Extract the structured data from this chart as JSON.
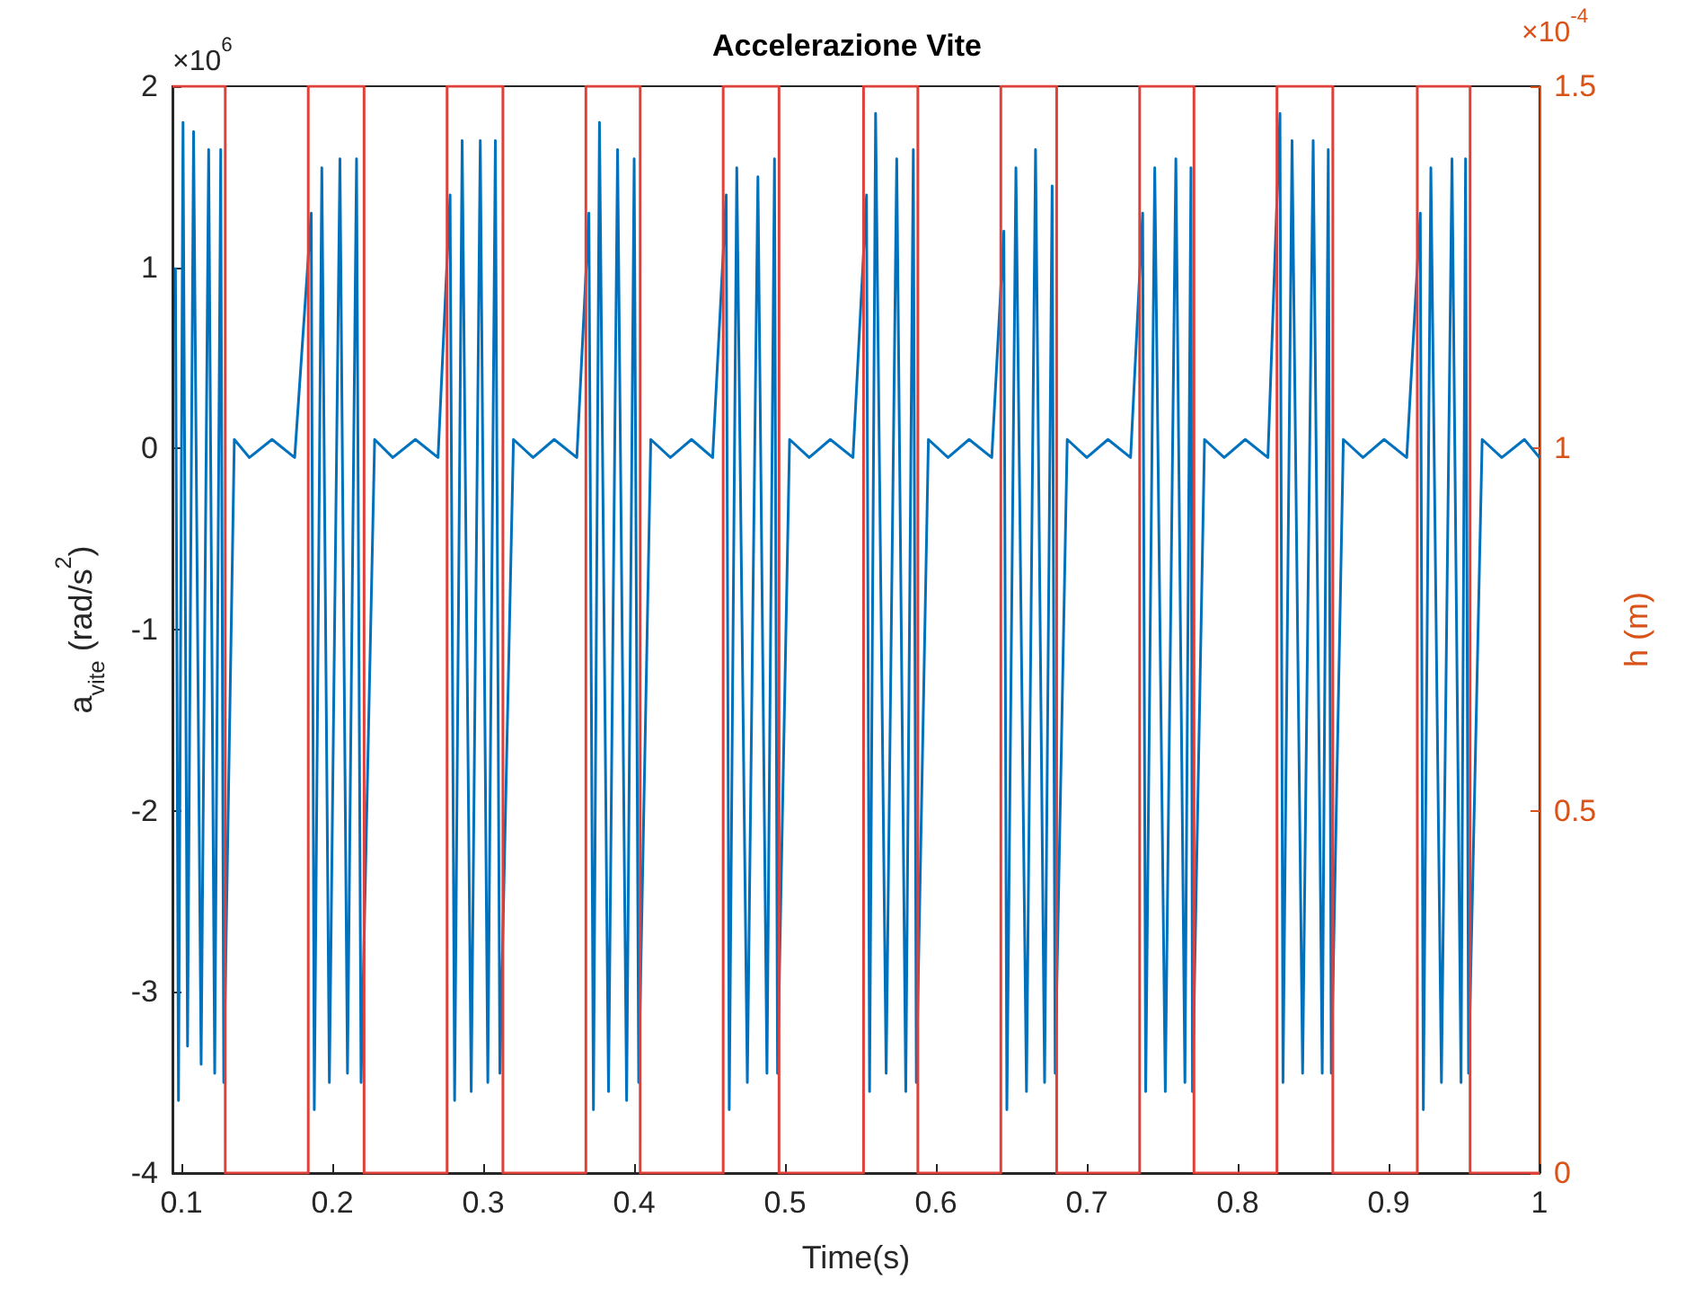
{
  "chart_data": {
    "type": "line",
    "title": "Accelerazione Vite",
    "xlabel": "Time(s)",
    "ylabel": "a$_{vite}$ (rad/s$^{2}$)",
    "y2label": "h (m)",
    "annotations": [
      "×10$^{6}$",
      "×10$^{-4}$"
    ],
    "xlim": [
      0.094,
      1
    ],
    "xticks": [
      0.1,
      0.2,
      0.3,
      0.4,
      0.5,
      0.6,
      0.7,
      0.8,
      0.9,
      1
    ],
    "ylim": [
      -4,
      2
    ],
    "yticks": [
      -4,
      -3,
      -2,
      -1,
      0,
      1,
      2
    ],
    "y2lim": [
      0,
      1.5
    ],
    "y2ticks": [
      0,
      0.5,
      1,
      1.5
    ],
    "grid": false,
    "legend": false,
    "marker": "none",
    "series": [
      {
        "color": "#0072bd",
        "x": [
          0.096,
          0.098,
          0.101,
          0.104,
          0.108,
          0.113,
          0.118,
          0.122,
          0.126,
          0.128,
          0.135,
          0.145,
          0.16,
          0.175,
          0.186,
          0.188,
          0.193,
          0.198,
          0.205,
          0.21,
          0.216,
          0.219,
          0.228,
          0.24,
          0.255,
          0.27,
          0.278,
          0.281,
          0.286,
          0.292,
          0.298,
          0.303,
          0.308,
          0.311,
          0.32,
          0.333,
          0.347,
          0.362,
          0.37,
          0.373,
          0.377,
          0.383,
          0.389,
          0.395,
          0.4,
          0.403,
          0.411,
          0.424,
          0.438,
          0.452,
          0.461,
          0.463,
          0.468,
          0.475,
          0.482,
          0.488,
          0.493,
          0.495,
          0.503,
          0.516,
          0.53,
          0.545,
          0.554,
          0.556,
          0.56,
          0.567,
          0.574,
          0.58,
          0.585,
          0.587,
          0.595,
          0.608,
          0.622,
          0.637,
          0.645,
          0.647,
          0.653,
          0.66,
          0.666,
          0.672,
          0.677,
          0.679,
          0.687,
          0.7,
          0.714,
          0.729,
          0.737,
          0.739,
          0.745,
          0.752,
          0.759,
          0.765,
          0.769,
          0.77,
          0.778,
          0.791,
          0.805,
          0.82,
          0.828,
          0.83,
          0.836,
          0.843,
          0.85,
          0.856,
          0.86,
          0.862,
          0.87,
          0.883,
          0.897,
          0.912,
          0.921,
          0.923,
          0.928,
          0.935,
          0.942,
          0.948,
          0.951,
          0.953,
          0.962,
          0.975,
          0.99,
          1.0
        ],
        "values": [
          1.0,
          -3.6,
          1.8,
          -3.3,
          1.75,
          -3.4,
          1.65,
          -3.45,
          1.65,
          -3.5,
          0.05,
          -0.05,
          0.05,
          -0.05,
          1.3,
          -3.65,
          1.55,
          -3.5,
          1.6,
          -3.45,
          1.6,
          -3.5,
          0.05,
          -0.05,
          0.05,
          -0.05,
          1.4,
          -3.6,
          1.7,
          -3.55,
          1.7,
          -3.5,
          1.7,
          -3.45,
          0.05,
          -0.05,
          0.05,
          -0.05,
          1.3,
          -3.65,
          1.8,
          -3.55,
          1.65,
          -3.6,
          1.6,
          -3.5,
          0.05,
          -0.05,
          0.05,
          -0.05,
          1.4,
          -3.65,
          1.55,
          -3.5,
          1.5,
          -3.45,
          1.6,
          -3.45,
          0.05,
          -0.05,
          0.05,
          -0.05,
          1.4,
          -3.55,
          1.85,
          -3.45,
          1.6,
          -3.55,
          1.65,
          -3.5,
          0.05,
          -0.05,
          0.05,
          -0.05,
          1.2,
          -3.65,
          1.55,
          -3.55,
          1.65,
          -3.5,
          1.45,
          -3.45,
          0.05,
          -0.05,
          0.05,
          -0.05,
          1.3,
          -3.55,
          1.55,
          -3.55,
          1.6,
          -3.5,
          1.55,
          -3.55,
          0.05,
          -0.05,
          0.05,
          -0.05,
          1.85,
          -3.5,
          1.7,
          -3.45,
          1.7,
          -3.45,
          1.65,
          -3.45,
          0.05,
          -0.05,
          0.05,
          -0.05,
          1.3,
          -3.65,
          1.55,
          -3.5,
          1.6,
          -3.5,
          1.6,
          -3.45,
          0.05,
          -0.05,
          0.05,
          -0.05
        ]
      },
      {
        "type": "step",
        "axis": "y2",
        "color": "#e0403a",
        "x": [
          0.094,
          0.129,
          0.184,
          0.221,
          0.276,
          0.313,
          0.368,
          0.404,
          0.459,
          0.496,
          0.552,
          0.588,
          0.643,
          0.68,
          0.735,
          0.771,
          0.826,
          0.863,
          0.919,
          0.954,
          1.0
        ],
        "values": [
          1.5,
          0,
          1.5,
          0,
          1.5,
          0,
          1.5,
          0,
          1.5,
          0,
          1.5,
          0,
          1.5,
          0,
          1.5,
          0,
          1.5,
          0,
          1.5,
          0,
          0
        ]
      }
    ]
  }
}
